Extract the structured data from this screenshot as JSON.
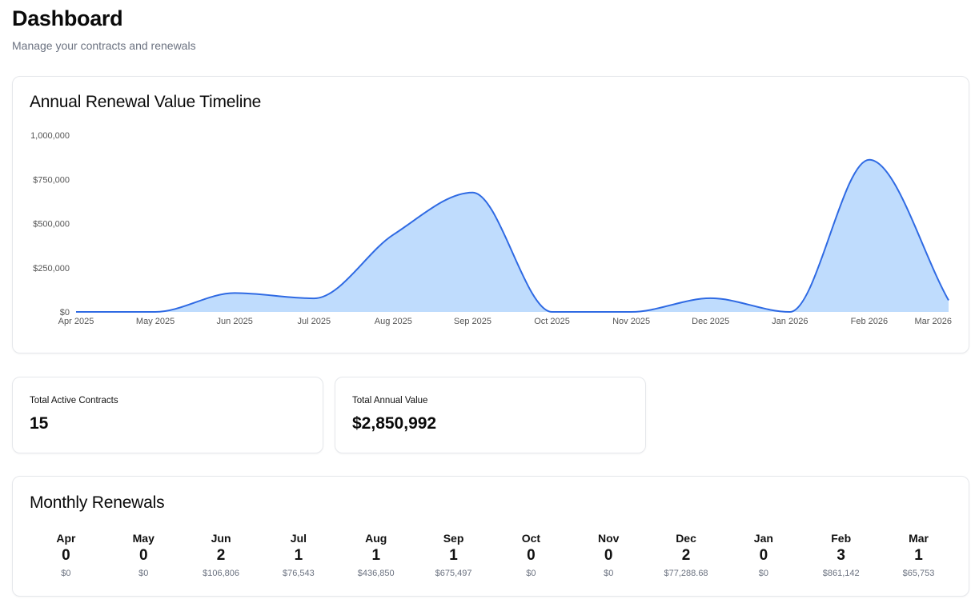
{
  "header": {
    "title": "Dashboard",
    "subtitle": "Manage your contracts and renewals"
  },
  "timeline": {
    "title": "Annual Renewal Value Timeline"
  },
  "chart_data": {
    "type": "area",
    "title": "Annual Renewal Value Timeline",
    "xlabel": "",
    "ylabel": "",
    "x": [
      "Apr 2025",
      "May 2025",
      "Jun 2025",
      "Jul 2025",
      "Aug 2025",
      "Sep 2025",
      "Oct 2025",
      "Nov 2025",
      "Dec 2025",
      "Jan 2026",
      "Feb 2026",
      "Mar 2026"
    ],
    "values": [
      0,
      0,
      106806,
      76543,
      436850,
      675497,
      0,
      0,
      77288.68,
      0,
      861142,
      65753
    ],
    "ylim": [
      0,
      1000000
    ],
    "yticks": [
      0,
      250000,
      500000,
      750000,
      1000000
    ],
    "ytick_labels": [
      "$0",
      "$250,000",
      "$500,000",
      "$750,000",
      "1,000,000"
    ],
    "grid": false,
    "colors": {
      "line": "#2f6ae3",
      "fill": "#bfdcfd"
    }
  },
  "stats": {
    "contracts_label": "Total Active Contracts",
    "contracts_value": "15",
    "annual_label": "Total Annual Value",
    "annual_value": "$2,850,992"
  },
  "monthly": {
    "title": "Monthly Renewals",
    "months": [
      {
        "name": "Apr",
        "count": "0",
        "value": "$0"
      },
      {
        "name": "May",
        "count": "0",
        "value": "$0"
      },
      {
        "name": "Jun",
        "count": "2",
        "value": "$106,806"
      },
      {
        "name": "Jul",
        "count": "1",
        "value": "$76,543"
      },
      {
        "name": "Aug",
        "count": "1",
        "value": "$436,850"
      },
      {
        "name": "Sep",
        "count": "1",
        "value": "$675,497"
      },
      {
        "name": "Oct",
        "count": "0",
        "value": "$0"
      },
      {
        "name": "Nov",
        "count": "0",
        "value": "$0"
      },
      {
        "name": "Dec",
        "count": "2",
        "value": "$77,288.68"
      },
      {
        "name": "Jan",
        "count": "0",
        "value": "$0"
      },
      {
        "name": "Feb",
        "count": "3",
        "value": "$861,142"
      },
      {
        "name": "Mar",
        "count": "1",
        "value": "$65,753"
      }
    ]
  }
}
